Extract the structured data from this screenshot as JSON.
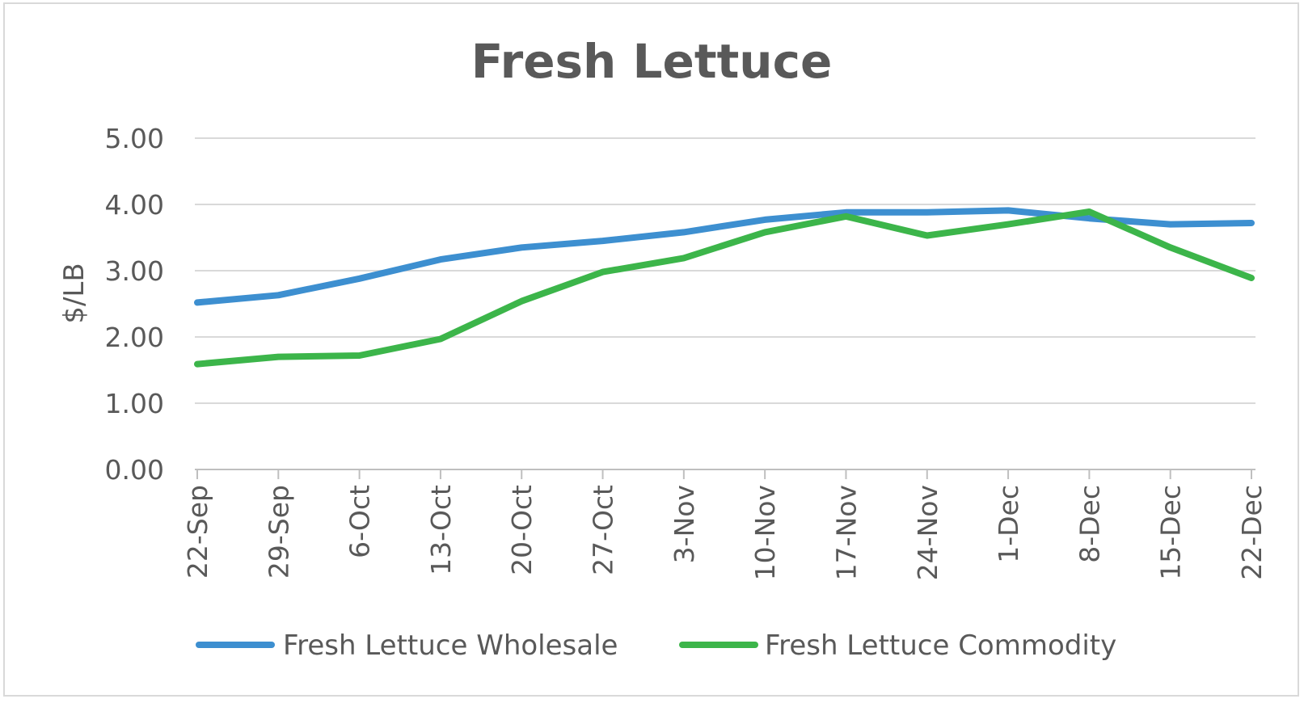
{
  "chart_data": {
    "type": "line",
    "title": "Fresh Lettuce",
    "ylabel": "$/LB",
    "xlabel": "",
    "ylim": [
      0,
      5
    ],
    "y_ticks": [
      "0.00",
      "1.00",
      "2.00",
      "3.00",
      "4.00",
      "5.00"
    ],
    "grid": true,
    "legend_position": "bottom",
    "categories": [
      "22-Sep",
      "29-Sep",
      "6-Oct",
      "13-Oct",
      "20-Oct",
      "27-Oct",
      "3-Nov",
      "10-Nov",
      "17-Nov",
      "24-Nov",
      "1-Dec",
      "8-Dec",
      "15-Dec",
      "22-Dec"
    ],
    "series": [
      {
        "name": "Fresh Lettuce Wholesale",
        "color": "#3d8fd0",
        "values": [
          2.52,
          2.63,
          2.88,
          3.17,
          3.35,
          3.45,
          3.58,
          3.77,
          3.88,
          3.88,
          3.91,
          3.79,
          3.7,
          3.72
        ]
      },
      {
        "name": "Fresh Lettuce Commodity",
        "color": "#3cb54a",
        "values": [
          1.59,
          1.7,
          1.72,
          1.97,
          2.54,
          2.98,
          3.19,
          3.58,
          3.82,
          3.53,
          3.7,
          3.89,
          3.35,
          2.89
        ]
      }
    ]
  }
}
